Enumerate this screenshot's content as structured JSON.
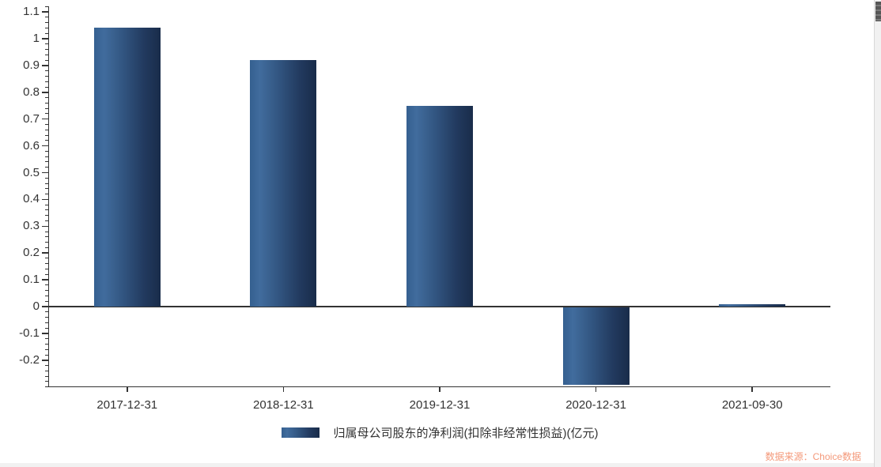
{
  "chart_data": {
    "type": "bar",
    "title": "",
    "xlabel": "",
    "ylabel": "",
    "categories": [
      "2017-12-31",
      "2018-12-31",
      "2019-12-31",
      "2020-12-31",
      "2021-09-30"
    ],
    "values": [
      1.04,
      0.92,
      0.75,
      -0.29,
      0.01
    ],
    "series_name": "归属母公司股东的净利润(扣除非经常性损益)(亿元)",
    "ylim": [
      -0.3,
      1.12
    ],
    "y_major_ticks": [
      1.1,
      1,
      0.9,
      0.8,
      0.7,
      0.6,
      0.5,
      0.4,
      0.3,
      0.2,
      0.1,
      0,
      -0.1,
      -0.2
    ],
    "y_tick_labels": [
      "1.1",
      "1",
      "0.9",
      "0.8",
      "0.7",
      "0.6",
      "0.5",
      "0.4",
      "0.3",
      "0.2",
      "0.1",
      "0",
      "-0.1",
      "-0.2"
    ],
    "y_minor_step": 0.02,
    "grid": false,
    "legend_position": "bottom",
    "bar_gradient": [
      "#416c9d",
      "#192c4a"
    ]
  },
  "footer": {
    "source_label": "数据来源：Choice数据"
  },
  "colors": {
    "axis": "#333333",
    "tick_label": "#333333",
    "bar_light": "#416c9d",
    "bar_dark": "#192c4a",
    "source_text": "#f4997a",
    "scrollbar_track": "#f1f1f1",
    "scrollbar_thumb": "#565656",
    "background": "#ffffff"
  }
}
